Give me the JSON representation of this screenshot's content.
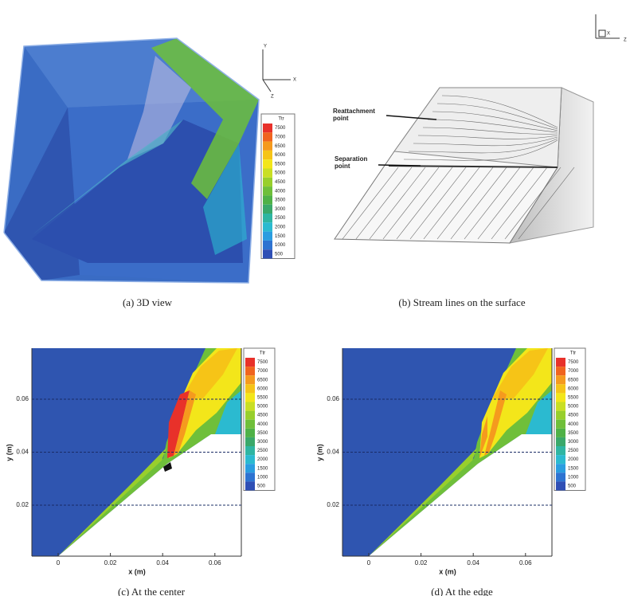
{
  "panels": [
    {
      "caption": "(a) 3D view",
      "triad": [
        "Y",
        "X",
        "Z"
      ],
      "legend": {
        "title": "Ttr",
        "levels": [
          "7500",
          "7000",
          "6500",
          "6000",
          "5500",
          "5000",
          "4500",
          "4000",
          "3500",
          "3000",
          "2500",
          "2000",
          "1500",
          "1000",
          "500"
        ]
      }
    },
    {
      "caption": "(b) Stream lines on the surface",
      "triad": [
        "X",
        "Z"
      ],
      "annotations": [
        {
          "lines": [
            "Reattachment",
            "point"
          ]
        },
        {
          "lines": [
            "Separation",
            "point"
          ]
        }
      ]
    },
    {
      "caption": "(c) At the center",
      "xlabel": "x (m)",
      "ylabel": "y (m)",
      "xticks": [
        "0",
        "0.02",
        "0.04",
        "0.06"
      ],
      "yticks": [
        "0.02",
        "0.04",
        "0.06"
      ],
      "legend": {
        "title": "Ttr",
        "levels": [
          "7500",
          "7000",
          "6500",
          "6000",
          "5500",
          "5000",
          "4500",
          "4000",
          "3500",
          "3000",
          "2500",
          "2000",
          "1500",
          "1000",
          "500"
        ]
      }
    },
    {
      "caption": "(d) At the edge",
      "xlabel": "x (m)",
      "ylabel": "y (m)",
      "xticks": [
        "0",
        "0.02",
        "0.04",
        "0.06"
      ],
      "yticks": [
        "0.02",
        "0.04",
        "0.06"
      ],
      "legend": {
        "title": "Ttr",
        "levels": [
          "7500",
          "7000",
          "6500",
          "6000",
          "5500",
          "5000",
          "4500",
          "4000",
          "3500",
          "3000",
          "2500",
          "2000",
          "1500",
          "1000",
          "500"
        ]
      }
    }
  ]
}
